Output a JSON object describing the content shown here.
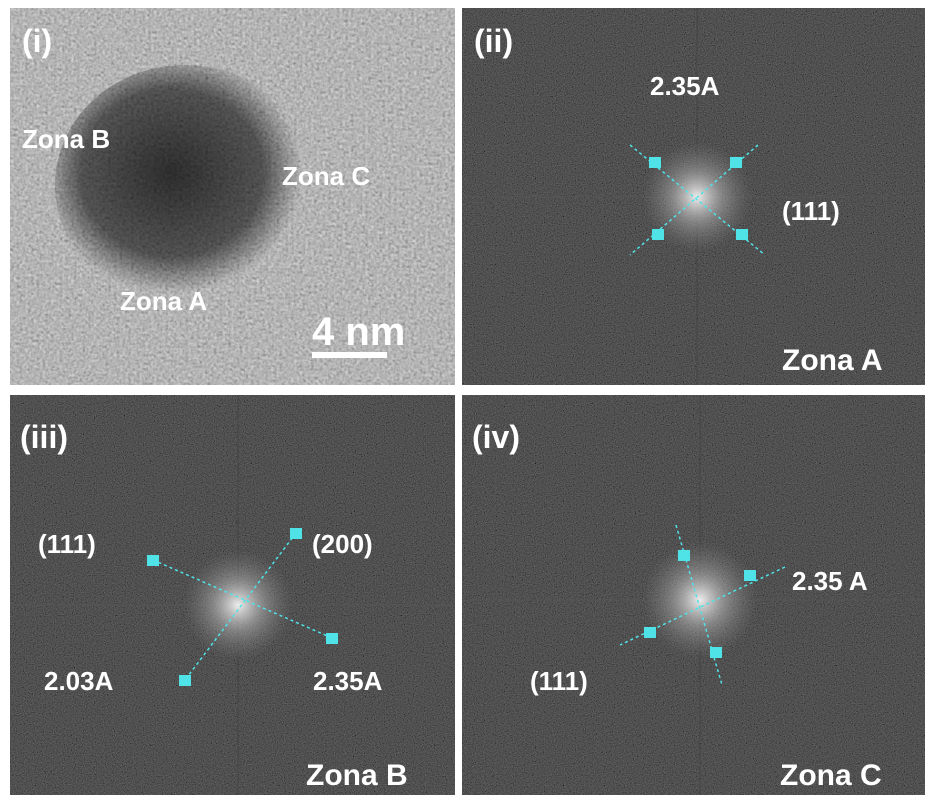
{
  "panels": [
    {
      "label": "(i)",
      "annotations": [
        "Zona B",
        "Zona C",
        "Zona A"
      ],
      "scale_bar": "4 nm"
    },
    {
      "label": "(ii)",
      "annotations": [
        "2.35A",
        "(111)"
      ],
      "zone": "Zona A"
    },
    {
      "label": "(iii)",
      "annotations": [
        "(111)",
        "(200)",
        "2.03A",
        "2.35A"
      ],
      "zone": "Zona B"
    },
    {
      "label": "(iv)",
      "annotations": [
        "2.35 A",
        "(111)"
      ],
      "zone": "Zona C"
    }
  ]
}
